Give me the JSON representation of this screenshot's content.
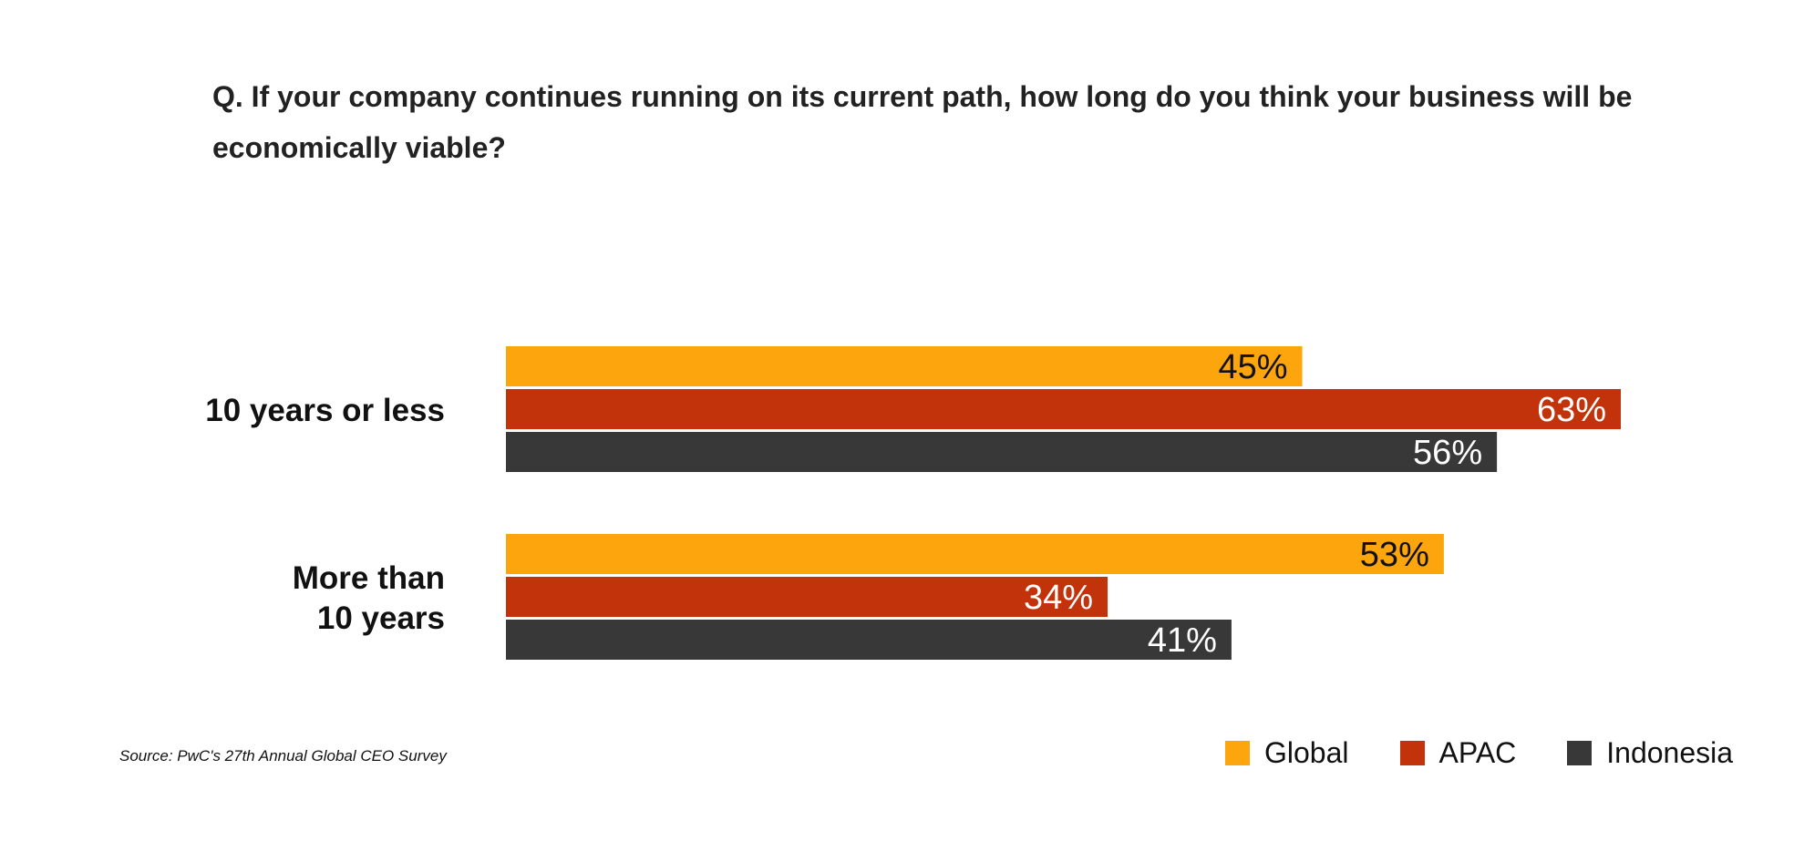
{
  "chart_data": {
    "type": "bar",
    "orientation": "horizontal",
    "title": "Q. If your company continues running on its current path, how long do you think your business will be economically viable?",
    "categories": [
      "10 years or less",
      "More than 10 years"
    ],
    "category_lines": [
      [
        "10 years or less"
      ],
      [
        "More than",
        "10 years"
      ]
    ],
    "series": [
      {
        "name": "Global",
        "color": "#FCA50C",
        "label_color": "#111111",
        "values": [
          45,
          53
        ],
        "labels": [
          "45%",
          "53%"
        ]
      },
      {
        "name": "APAC",
        "color": "#C2330B",
        "label_color": "#ffffff",
        "values": [
          63,
          34
        ],
        "labels": [
          "63%",
          "34%"
        ]
      },
      {
        "name": "Indonesia",
        "color": "#383838",
        "label_color": "#ffffff",
        "values": [
          56,
          41
        ],
        "labels": [
          "56%",
          "41%"
        ]
      }
    ],
    "xlim": [
      0,
      63
    ],
    "grid": false,
    "legend_position": "bottom-right",
    "source": "Source: PwC's 27th Annual Global CEO Survey"
  }
}
